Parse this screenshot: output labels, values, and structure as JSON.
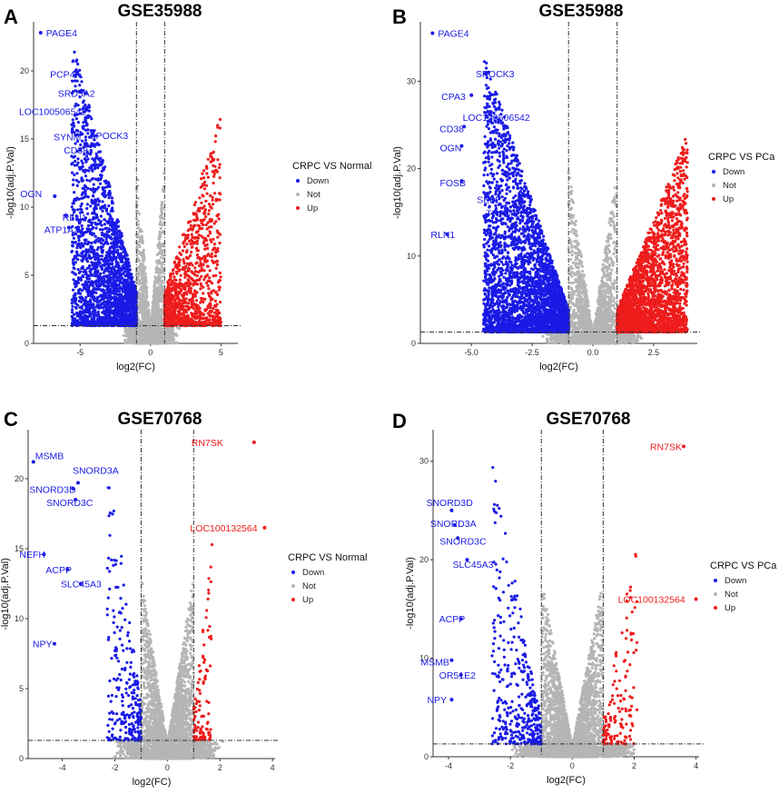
{
  "colors": {
    "down": "#1a1ae6",
    "not": "#b5b5b5",
    "up": "#ee1c1c"
  },
  "chart_data": [
    {
      "type": "scatter",
      "panel": "A",
      "title": "GSE35988",
      "xlabel": "log2(FC)",
      "ylabel": "-log10(adj.P.Val)",
      "xlim": [
        -8.3,
        6.2
      ],
      "ylim": [
        0,
        23.6
      ],
      "xticks": [
        -5,
        0,
        5
      ],
      "yticks": [
        0,
        5,
        10,
        15,
        20
      ],
      "fc_cutoff": 1,
      "p_cutoff": 1.3,
      "legend": {
        "title": "CRPC VS Normal",
        "entries": [
          "Down",
          "Not",
          "Up"
        ],
        "position": "right"
      },
      "labeled_genes": [
        {
          "gene": "PAGE4",
          "x": -7.8,
          "y": 22.8,
          "group": "Down"
        },
        {
          "gene": "PCP4",
          "x": -5.2,
          "y": 19.9,
          "group": "Down"
        },
        {
          "gene": "SRD5A2",
          "x": -4.9,
          "y": 18.5,
          "group": "Down"
        },
        {
          "gene": "LOC100506542",
          "x": -4.5,
          "y": 17.3,
          "group": "Down"
        },
        {
          "gene": "SPOCK3",
          "x": -4.2,
          "y": 15.6,
          "group": "Down"
        },
        {
          "gene": "SYNM",
          "x": -5.2,
          "y": 15.3,
          "group": "Down"
        },
        {
          "gene": "CD38",
          "x": -5.0,
          "y": 14.2,
          "group": "Down"
        },
        {
          "gene": "OGN",
          "x": -6.8,
          "y": 10.8,
          "group": "Down"
        },
        {
          "gene": "RLN1",
          "x": -6.0,
          "y": 9.4,
          "group": "Down"
        },
        {
          "gene": "ATP1A2",
          "x": -5.8,
          "y": 8.5,
          "group": "Down"
        }
      ],
      "background": {
        "n_down": 2400,
        "n_not": 1900,
        "n_up": 1100,
        "down_xrange": [
          -5.6,
          -1
        ],
        "up_xrange": [
          1,
          5.0
        ]
      },
      "seed": 11
    },
    {
      "type": "scatter",
      "panel": "B",
      "title": "GSE35988",
      "xlabel": "log2(FC)",
      "ylabel": "-log10(adj.P.Val)",
      "xlim": [
        -7.1,
        4.3
      ],
      "ylim": [
        0,
        36.8
      ],
      "xticks": [
        -5.0,
        -2.5,
        0.0,
        2.5
      ],
      "yticks": [
        0,
        10,
        20,
        30
      ],
      "fc_cutoff": 1,
      "p_cutoff": 1.3,
      "legend": {
        "title": "CRPC VS PCa",
        "entries": [
          "Down",
          "Not",
          "Up"
        ],
        "position": "right"
      },
      "labeled_genes": [
        {
          "gene": "PAGE4",
          "x": -6.6,
          "y": 35.5,
          "group": "Down"
        },
        {
          "gene": "SPOCK3",
          "x": -4.3,
          "y": 31.0,
          "group": "Down"
        },
        {
          "gene": "CPA3",
          "x": -5.0,
          "y": 28.4,
          "group": "Down"
        },
        {
          "gene": "LOC100506542",
          "x": -4.2,
          "y": 26.5,
          "group": "Down"
        },
        {
          "gene": "CD38",
          "x": -5.3,
          "y": 24.8,
          "group": "Down"
        },
        {
          "gene": "OGN",
          "x": -5.4,
          "y": 22.6,
          "group": "Down"
        },
        {
          "gene": "FOSB",
          "x": -5.4,
          "y": 18.6,
          "group": "Down"
        },
        {
          "gene": "SELE",
          "x": -4.1,
          "y": 16.5,
          "group": "Down"
        },
        {
          "gene": "TRPM8",
          "x": -3.8,
          "y": 15.0,
          "group": "Down"
        },
        {
          "gene": "RLN1",
          "x": -6.0,
          "y": 12.5,
          "group": "Down"
        }
      ],
      "background": {
        "n_down": 3600,
        "n_not": 2300,
        "n_up": 2800,
        "down_xrange": [
          -4.5,
          -1
        ],
        "up_xrange": [
          1,
          3.9
        ]
      },
      "seed": 23
    },
    {
      "type": "scatter",
      "panel": "C",
      "title": "GSE70768",
      "xlabel": "log2(FC)",
      "ylabel": "-log10(adj.P.Val)",
      "xlim": [
        -5.3,
        4.1
      ],
      "ylim": [
        0,
        23.5
      ],
      "xticks": [
        -4,
        -2,
        0,
        2,
        4
      ],
      "yticks": [
        0,
        5,
        10,
        15,
        20
      ],
      "fc_cutoff": 1,
      "p_cutoff": 1.3,
      "legend": {
        "title": "CRPC VS Normal",
        "entries": [
          "Down",
          "Not",
          "Up"
        ],
        "position": "right"
      },
      "labeled_genes": [
        {
          "gene": "RN7SK",
          "x": 3.3,
          "y": 22.6,
          "group": "Up"
        },
        {
          "gene": "MSMB",
          "x": -5.1,
          "y": 21.2,
          "group": "Down"
        },
        {
          "gene": "SNORD3A",
          "x": -3.4,
          "y": 19.7,
          "group": "Down"
        },
        {
          "gene": "SNORD3D",
          "x": -3.6,
          "y": 19.3,
          "group": "Down"
        },
        {
          "gene": "SNORD3C",
          "x": -3.5,
          "y": 18.5,
          "group": "Down"
        },
        {
          "gene": "LOC100132564",
          "x": 3.7,
          "y": 16.5,
          "group": "Up"
        },
        {
          "gene": "NEFH",
          "x": -4.7,
          "y": 14.6,
          "group": "Down"
        },
        {
          "gene": "ACPP",
          "x": -3.8,
          "y": 13.5,
          "group": "Down"
        },
        {
          "gene": "SLC45A3",
          "x": -3.3,
          "y": 12.5,
          "group": "Down"
        },
        {
          "gene": "NPY",
          "x": -4.3,
          "y": 8.2,
          "group": "Down"
        }
      ],
      "background": {
        "n_down": 260,
        "n_not": 3400,
        "n_up": 110,
        "down_xrange": [
          -2.3,
          -1
        ],
        "up_xrange": [
          1,
          1.7
        ]
      },
      "seed": 37
    },
    {
      "type": "scatter",
      "panel": "D",
      "title": "GSE70768",
      "xlabel": "log2(FC)",
      "ylabel": "-log10(adj.P.Val)",
      "xlim": [
        -4.5,
        4.1
      ],
      "ylim": [
        0,
        33.2
      ],
      "xticks": [
        -4,
        -2,
        0,
        2,
        4
      ],
      "yticks": [
        0,
        10,
        20,
        30
      ],
      "fc_cutoff": 1,
      "p_cutoff": 1.3,
      "legend": {
        "title": "CRPC VS PCa",
        "entries": [
          "Down",
          "Not",
          "Up"
        ],
        "position": "right"
      },
      "labeled_genes": [
        {
          "gene": "RN7SK",
          "x": 3.6,
          "y": 31.5,
          "group": "Up"
        },
        {
          "gene": "SNORD3D",
          "x": -3.9,
          "y": 25.0,
          "group": "Down"
        },
        {
          "gene": "SNORD3A",
          "x": -3.8,
          "y": 23.5,
          "group": "Down"
        },
        {
          "gene": "SNORD3C",
          "x": -3.7,
          "y": 22.2,
          "group": "Down"
        },
        {
          "gene": "SLC45A3",
          "x": -3.4,
          "y": 20.0,
          "group": "Down"
        },
        {
          "gene": "LOC100132564",
          "x": 4.0,
          "y": 16.0,
          "group": "Up"
        },
        {
          "gene": "ACPP",
          "x": -3.6,
          "y": 14.0,
          "group": "Down"
        },
        {
          "gene": "MSMB",
          "x": -3.9,
          "y": 9.8,
          "group": "Down"
        },
        {
          "gene": "OR51E2",
          "x": -3.6,
          "y": 8.3,
          "group": "Down"
        },
        {
          "gene": "NPY",
          "x": -3.9,
          "y": 5.8,
          "group": "Down"
        }
      ],
      "background": {
        "n_down": 380,
        "n_not": 3600,
        "n_up": 140,
        "down_xrange": [
          -2.6,
          -1
        ],
        "up_xrange": [
          1,
          2.1
        ]
      },
      "seed": 51
    }
  ]
}
